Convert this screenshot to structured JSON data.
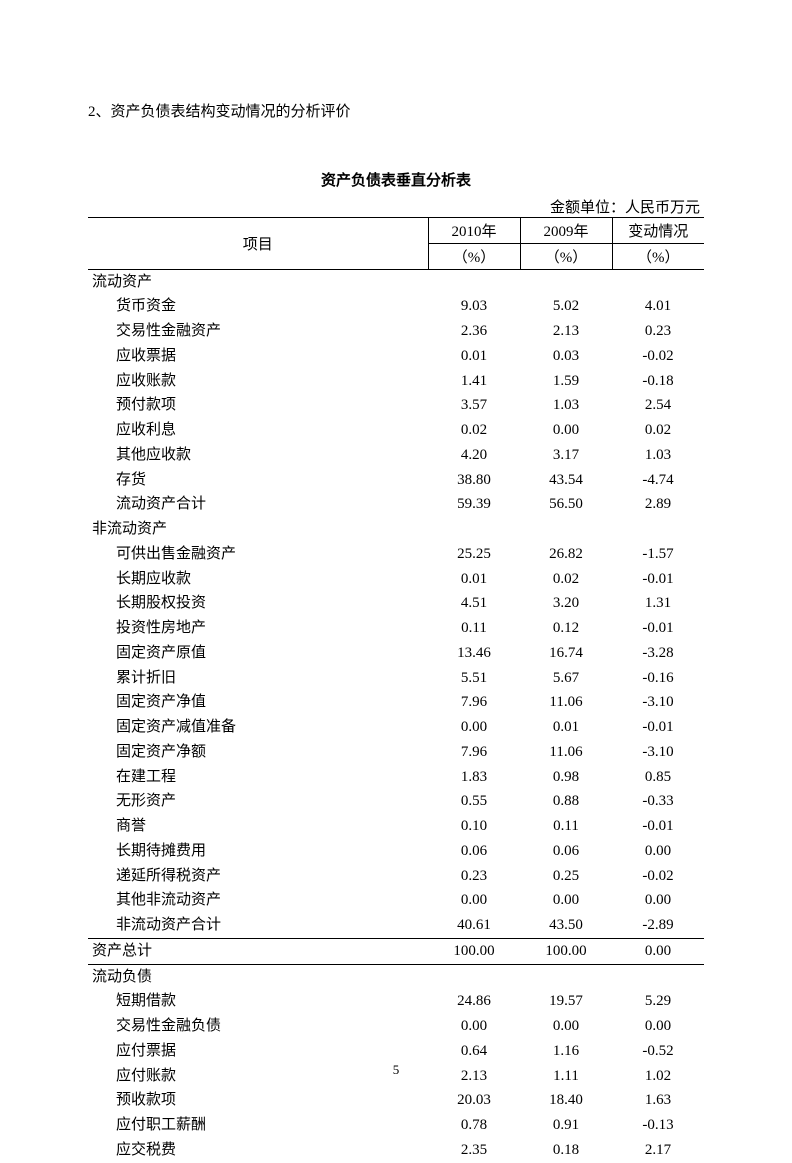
{
  "section_heading": "2、资产负债表结构变动情况的分析评价",
  "table_title": "资产负债表垂直分析表",
  "unit_label": "金额单位：人民币万元",
  "page_number": "5",
  "columns": {
    "item": "项目",
    "y2010_top": "2010年",
    "y2010_bot": "（%）",
    "y2009_top": "2009年",
    "y2009_bot": "（%）",
    "change_top": "变动情况",
    "change_bot": "（%）"
  },
  "rows": [
    {
      "indent": 0,
      "label": "流动资产",
      "v1": "",
      "v2": "",
      "v3": ""
    },
    {
      "indent": 1,
      "label": "货币资金",
      "v1": "9.03",
      "v2": "5.02",
      "v3": "4.01"
    },
    {
      "indent": 1,
      "label": "交易性金融资产",
      "v1": "2.36",
      "v2": "2.13",
      "v3": "0.23"
    },
    {
      "indent": 1,
      "label": "应收票据",
      "v1": "0.01",
      "v2": "0.03",
      "v3": "-0.02"
    },
    {
      "indent": 1,
      "label": "应收账款",
      "v1": "1.41",
      "v2": "1.59",
      "v3": "-0.18"
    },
    {
      "indent": 1,
      "label": "预付款项",
      "v1": "3.57",
      "v2": "1.03",
      "v3": "2.54"
    },
    {
      "indent": 1,
      "label": "应收利息",
      "v1": "0.02",
      "v2": "0.00",
      "v3": "0.02"
    },
    {
      "indent": 1,
      "label": "其他应收款",
      "v1": "4.20",
      "v2": "3.17",
      "v3": "1.03"
    },
    {
      "indent": 1,
      "label": "存货",
      "v1": "38.80",
      "v2": "43.54",
      "v3": "-4.74"
    },
    {
      "indent": 1,
      "label": "流动资产合计",
      "v1": "59.39",
      "v2": "56.50",
      "v3": "2.89"
    },
    {
      "indent": 0,
      "label": "非流动资产",
      "v1": "",
      "v2": "",
      "v3": ""
    },
    {
      "indent": 1,
      "label": "可供出售金融资产",
      "v1": "25.25",
      "v2": "26.82",
      "v3": "-1.57"
    },
    {
      "indent": 1,
      "label": "长期应收款",
      "v1": "0.01",
      "v2": "0.02",
      "v3": "-0.01"
    },
    {
      "indent": 1,
      "label": "长期股权投资",
      "v1": "4.51",
      "v2": "3.20",
      "v3": "1.31"
    },
    {
      "indent": 1,
      "label": "投资性房地产",
      "v1": "0.11",
      "v2": "0.12",
      "v3": "-0.01"
    },
    {
      "indent": 1,
      "label": "固定资产原值",
      "v1": "13.46",
      "v2": "16.74",
      "v3": "-3.28"
    },
    {
      "indent": 1,
      "label": "累计折旧",
      "v1": "5.51",
      "v2": "5.67",
      "v3": "-0.16"
    },
    {
      "indent": 1,
      "label": "固定资产净值",
      "v1": "7.96",
      "v2": "11.06",
      "v3": "-3.10"
    },
    {
      "indent": 1,
      "label": "固定资产减值准备",
      "v1": "0.00",
      "v2": "0.01",
      "v3": "-0.01"
    },
    {
      "indent": 1,
      "label": "固定资产净额",
      "v1": "7.96",
      "v2": "11.06",
      "v3": "-3.10"
    },
    {
      "indent": 1,
      "label": "在建工程",
      "v1": "1.83",
      "v2": "0.98",
      "v3": "0.85"
    },
    {
      "indent": 1,
      "label": "无形资产",
      "v1": "0.55",
      "v2": "0.88",
      "v3": "-0.33"
    },
    {
      "indent": 1,
      "label": "商誉",
      "v1": "0.10",
      "v2": "0.11",
      "v3": "-0.01"
    },
    {
      "indent": 1,
      "label": "长期待摊费用",
      "v1": "0.06",
      "v2": "0.06",
      "v3": "0.00"
    },
    {
      "indent": 1,
      "label": "递延所得税资产",
      "v1": "0.23",
      "v2": "0.25",
      "v3": "-0.02"
    },
    {
      "indent": 1,
      "label": "其他非流动资产",
      "v1": "0.00",
      "v2": "0.00",
      "v3": "0.00"
    },
    {
      "indent": 1,
      "label": "非流动资产合计",
      "v1": "40.61",
      "v2": "43.50",
      "v3": "-2.89"
    },
    {
      "indent": 0,
      "label": "资产总计",
      "v1": "100.00",
      "v2": "100.00",
      "v3": "0.00",
      "total": true
    },
    {
      "indent": 0,
      "label": "流动负债",
      "v1": "",
      "v2": "",
      "v3": ""
    },
    {
      "indent": 1,
      "label": "短期借款",
      "v1": "24.86",
      "v2": "19.57",
      "v3": "5.29"
    },
    {
      "indent": 1,
      "label": "交易性金融负债",
      "v1": "0.00",
      "v2": "0.00",
      "v3": "0.00"
    },
    {
      "indent": 1,
      "label": "应付票据",
      "v1": "0.64",
      "v2": "1.16",
      "v3": "-0.52"
    },
    {
      "indent": 1,
      "label": "应付账款",
      "v1": "2.13",
      "v2": "1.11",
      "v3": "1.02"
    },
    {
      "indent": 1,
      "label": "预收款项",
      "v1": "20.03",
      "v2": "18.40",
      "v3": "1.63"
    },
    {
      "indent": 1,
      "label": "应付职工薪酬",
      "v1": "0.78",
      "v2": "0.91",
      "v3": "-0.13"
    },
    {
      "indent": 1,
      "label": "应交税费",
      "v1": "2.35",
      "v2": "0.18",
      "v3": "2.17"
    }
  ]
}
